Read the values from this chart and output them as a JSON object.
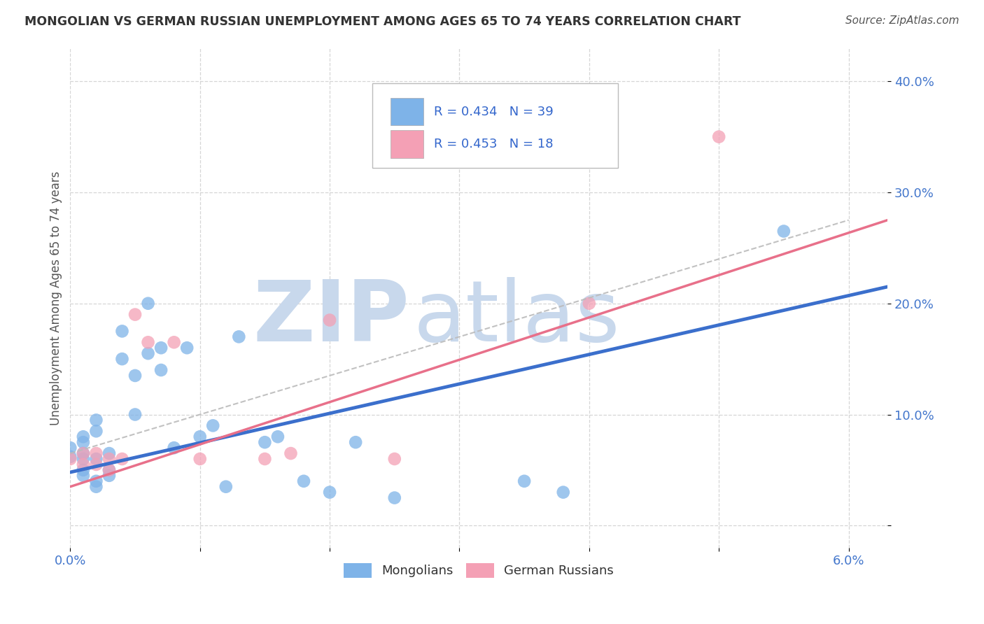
{
  "title": "MONGOLIAN VS GERMAN RUSSIAN UNEMPLOYMENT AMONG AGES 65 TO 74 YEARS CORRELATION CHART",
  "source_text": "Source: ZipAtlas.com",
  "ylabel": "Unemployment Among Ages 65 to 74 years",
  "xlim": [
    0.0,
    0.063
  ],
  "ylim": [
    -0.02,
    0.43
  ],
  "xticks": [
    0.0,
    0.01,
    0.02,
    0.03,
    0.04,
    0.05,
    0.06
  ],
  "xtick_labels": [
    "0.0%",
    "",
    "",
    "",
    "",
    "",
    "6.0%"
  ],
  "ytick_positions": [
    0.0,
    0.1,
    0.2,
    0.3,
    0.4
  ],
  "ytick_labels": [
    "",
    "10.0%",
    "20.0%",
    "30.0%",
    "40.0%"
  ],
  "blue_color": "#7EB3E8",
  "pink_color": "#F4A0B5",
  "blue_line_color": "#3B6FCC",
  "pink_line_color": "#E8708A",
  "watermark_zip": "ZIP",
  "watermark_atlas": "atlas",
  "watermark_color_zip": "#C8D8EC",
  "watermark_color_atlas": "#C8D8EC",
  "legend_label1": "Mongolians",
  "legend_label2": "German Russians",
  "legend_r1": "R = 0.434",
  "legend_n1": "N = 39",
  "legend_r2": "R = 0.453",
  "legend_n2": "N = 18",
  "mongolian_x": [
    0.0,
    0.0,
    0.001,
    0.001,
    0.001,
    0.001,
    0.001,
    0.001,
    0.002,
    0.002,
    0.002,
    0.002,
    0.002,
    0.003,
    0.003,
    0.003,
    0.004,
    0.004,
    0.005,
    0.005,
    0.006,
    0.006,
    0.007,
    0.007,
    0.008,
    0.009,
    0.01,
    0.011,
    0.012,
    0.013,
    0.015,
    0.016,
    0.018,
    0.02,
    0.022,
    0.025,
    0.035,
    0.038,
    0.055
  ],
  "mongolian_y": [
    0.062,
    0.07,
    0.075,
    0.065,
    0.08,
    0.06,
    0.05,
    0.045,
    0.095,
    0.085,
    0.06,
    0.04,
    0.035,
    0.065,
    0.05,
    0.045,
    0.175,
    0.15,
    0.135,
    0.1,
    0.2,
    0.155,
    0.14,
    0.16,
    0.07,
    0.16,
    0.08,
    0.09,
    0.035,
    0.17,
    0.075,
    0.08,
    0.04,
    0.03,
    0.075,
    0.025,
    0.04,
    0.03,
    0.265
  ],
  "german_x": [
    0.0,
    0.001,
    0.001,
    0.002,
    0.002,
    0.003,
    0.003,
    0.004,
    0.005,
    0.006,
    0.008,
    0.01,
    0.015,
    0.017,
    0.02,
    0.025,
    0.04,
    0.05
  ],
  "german_y": [
    0.06,
    0.065,
    0.055,
    0.065,
    0.055,
    0.06,
    0.05,
    0.06,
    0.19,
    0.165,
    0.165,
    0.06,
    0.06,
    0.065,
    0.185,
    0.06,
    0.2,
    0.35
  ],
  "blue_trend_x0": 0.0,
  "blue_trend_y0": 0.048,
  "blue_trend_x1": 0.063,
  "blue_trend_y1": 0.215,
  "pink_trend_x0": 0.0,
  "pink_trend_y0": 0.035,
  "pink_trend_x1": 0.063,
  "pink_trend_y1": 0.275,
  "background_color": "#FFFFFF",
  "grid_color": "#CCCCCC"
}
